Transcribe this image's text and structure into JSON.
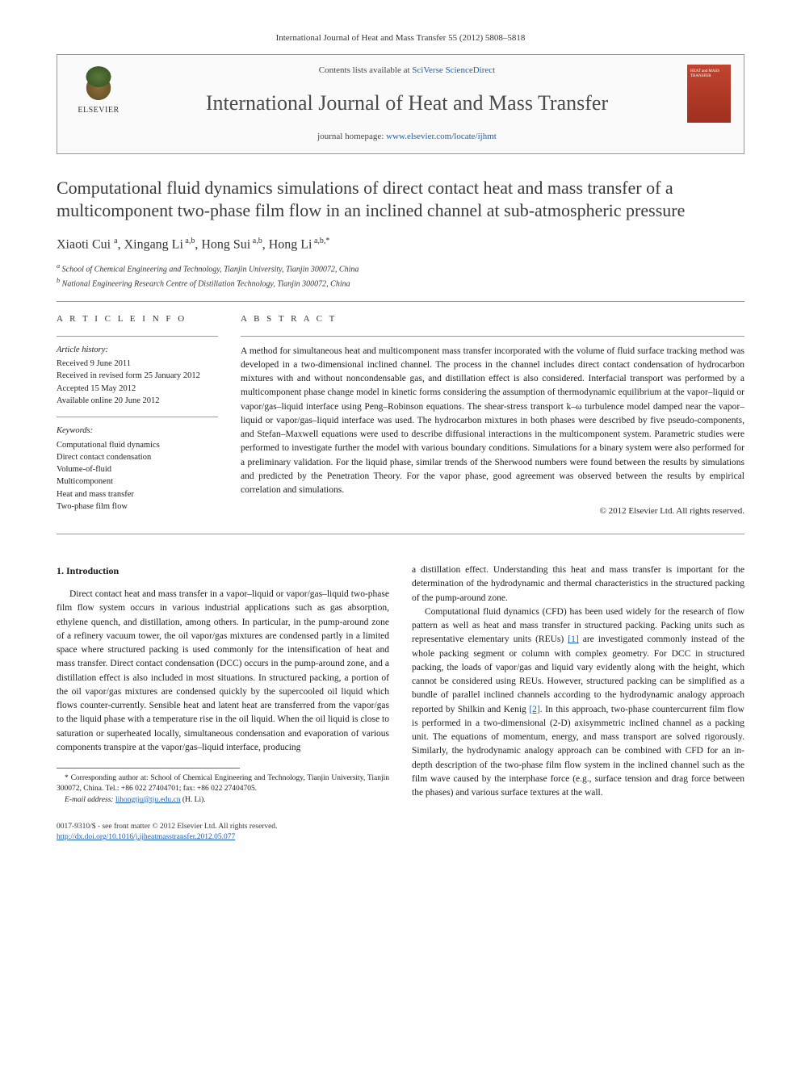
{
  "citation": "International Journal of Heat and Mass Transfer 55 (2012) 5808–5818",
  "header": {
    "contents_prefix": "Contents lists available at ",
    "contents_link": "SciVerse ScienceDirect",
    "journal_name": "International Journal of Heat and Mass Transfer",
    "homepage_prefix": "journal homepage: ",
    "homepage_link": "www.elsevier.com/locate/ijhmt",
    "publisher_label": "ELSEVIER",
    "cover_text": "HEAT and MASS TRANSFER"
  },
  "title": "Computational fluid dynamics simulations of direct contact heat and mass transfer of a multicomponent two-phase film flow in an inclined channel at sub-atmospheric pressure",
  "authors_html": "Xiaoti Cui <sup>a</sup>, Xingang Li<sup> a,b</sup>, Hong Sui<sup> a,b</sup>, Hong Li<sup> a,b,*</sup>",
  "affiliations": [
    "a School of Chemical Engineering and Technology, Tianjin University, Tianjin 300072, China",
    "b National Engineering Research Centre of Distillation Technology, Tianjin 300072, China"
  ],
  "info": {
    "heading": "A R T I C L E   I N F O",
    "history_label": "Article history:",
    "history": [
      "Received 9 June 2011",
      "Received in revised form 25 January 2012",
      "Accepted 15 May 2012",
      "Available online 20 June 2012"
    ],
    "keywords_label": "Keywords:",
    "keywords": [
      "Computational fluid dynamics",
      "Direct contact condensation",
      "Volume-of-fluid",
      "Multicomponent",
      "Heat and mass transfer",
      "Two-phase film flow"
    ]
  },
  "abstract": {
    "heading": "A B S T R A C T",
    "text": "A method for simultaneous heat and multicomponent mass transfer incorporated with the volume of fluid surface tracking method was developed in a two-dimensional inclined channel. The process in the channel includes direct contact condensation of hydrocarbon mixtures with and without noncondensable gas, and distillation effect is also considered. Interfacial transport was performed by a multicomponent phase change model in kinetic forms considering the assumption of thermodynamic equilibrium at the vapor–liquid or vapor/gas–liquid interface using Peng–Robinson equations. The shear-stress transport k–ω turbulence model damped near the vapor–liquid or vapor/gas–liquid interface was used. The hydrocarbon mixtures in both phases were described by five pseudo-components, and Stefan–Maxwell equations were used to describe diffusional interactions in the multicomponent system. Parametric studies were performed to investigate further the model with various boundary conditions. Simulations for a binary system were also performed for a preliminary validation. For the liquid phase, similar trends of the Sherwood numbers were found between the results by simulations and predicted by the Penetration Theory. For the vapor phase, good agreement was observed between the results by empirical correlation and simulations.",
    "copyright": "© 2012 Elsevier Ltd. All rights reserved."
  },
  "body": {
    "section_heading": "1. Introduction",
    "col1_para1": "Direct contact heat and mass transfer in a vapor–liquid or vapor/gas–liquid two-phase film flow system occurs in various industrial applications such as gas absorption, ethylene quench, and distillation, among others. In particular, in the pump-around zone of a refinery vacuum tower, the oil vapor/gas mixtures are condensed partly in a limited space where structured packing is used commonly for the intensification of heat and mass transfer. Direct contact condensation (DCC) occurs in the pump-around zone, and a distillation effect is also included in most situations. In structured packing, a portion of the oil vapor/gas mixtures are condensed quickly by the supercooled oil liquid which flows counter-currently. Sensible heat and latent heat are transferred from the vapor/gas to the liquid phase with a temperature rise in the oil liquid. When the oil liquid is close to saturation or superheated locally, simultaneous condensation and evaporation of various components transpire at the vapor/gas–liquid interface, producing",
    "col2_para1": "a distillation effect. Understanding this heat and mass transfer is important for the determination of the hydrodynamic and thermal characteristics in the structured packing of the pump-around zone.",
    "col2_para2_pre": "Computational fluid dynamics (CFD) has been used widely for the research of flow pattern as well as heat and mass transfer in structured packing. Packing units such as representative elementary units (REUs) ",
    "ref1": "[1]",
    "col2_para2_mid": " are investigated commonly instead of the whole packing segment or column with complex geometry. For DCC in structured packing, the loads of vapor/gas and liquid vary evidently along with the height, which cannot be considered using REUs. However, structured packing can be simplified as a bundle of parallel inclined channels according to the hydrodynamic analogy approach reported by Shilkin and Kenig ",
    "ref2": "[2]",
    "col2_para2_post": ". In this approach, two-phase countercurrent film flow is performed in a two-dimensional (2-D) axisymmetric inclined channel as a packing unit. The equations of momentum, energy, and mass transport are solved rigorously. Similarly, the hydrodynamic analogy approach can be combined with CFD for an in-depth description of the two-phase film flow system in the inclined channel such as the film wave caused by the interphase force (e.g., surface tension and drag force between the phases) and various surface textures at the wall."
  },
  "footnote": {
    "corresponding": "* Corresponding author at: School of Chemical Engineering and Technology, Tianjin University, Tianjin 300072, China. Tel.: +86 022 27404701; fax: +86 022 27404705.",
    "email_label": "E-mail address: ",
    "email": "lihongtju@tju.edu.cn",
    "email_suffix": " (H. Li)."
  },
  "footer": {
    "line1": "0017-9310/$ - see front matter © 2012 Elsevier Ltd. All rights reserved.",
    "doi_label": "http://dx.doi.org/",
    "doi": "10.1016/j.ijheatmasstransfer.2012.05.077"
  },
  "colors": {
    "link": "#1a5fb4",
    "cover_bg": "#c1442e",
    "border": "#999999"
  }
}
